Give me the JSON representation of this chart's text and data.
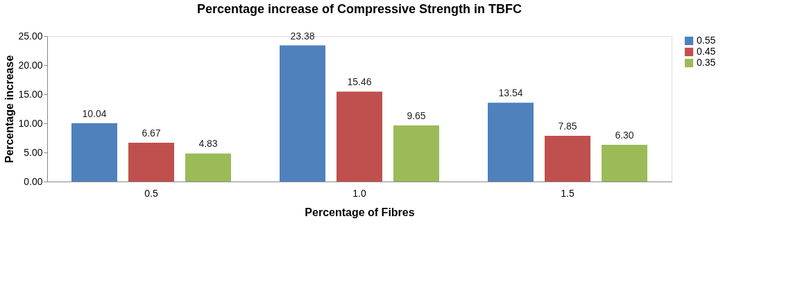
{
  "chart_data": {
    "type": "bar",
    "title": "Percentage increase  of Compressive Strength in TBFC",
    "xlabel": "Percentage of Fibres",
    "ylabel": "Percentage increase",
    "categories": [
      "0.5",
      "1.0",
      "1.5"
    ],
    "series": [
      {
        "name": "0.55",
        "color": "#4f81bd",
        "values": [
          10.04,
          23.38,
          13.54
        ],
        "value_labels": [
          "10.04",
          "23.38",
          "13.54"
        ]
      },
      {
        "name": "0.45",
        "color": "#c0504d",
        "values": [
          6.67,
          15.46,
          7.85
        ],
        "value_labels": [
          "6.67",
          "15.46",
          "7.85"
        ]
      },
      {
        "name": "0.35",
        "color": "#9bbb59",
        "values": [
          4.83,
          9.65,
          6.3
        ],
        "value_labels": [
          "4.83",
          "9.65",
          "6.30"
        ]
      }
    ],
    "ylim": [
      0,
      25
    ],
    "yticks": [
      {
        "value": 0,
        "label": "0.00"
      },
      {
        "value": 5,
        "label": "5.00"
      },
      {
        "value": 10,
        "label": "10.00"
      },
      {
        "value": 15,
        "label": "15.00"
      },
      {
        "value": 20,
        "label": "20.00"
      },
      {
        "value": 25,
        "label": "25.00"
      }
    ],
    "grid": false,
    "legend": "right"
  }
}
